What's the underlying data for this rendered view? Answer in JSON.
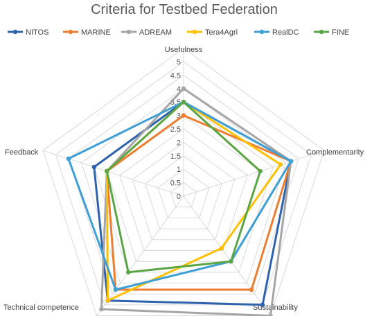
{
  "chart_data": {
    "type": "radar",
    "title": "Criteria for Testbed Federation",
    "categories": [
      "Usefulness",
      "Complementarity",
      "Sustainability",
      "Technical competence",
      "Feedback"
    ],
    "rlim": [
      0,
      5
    ],
    "ticks": [
      "0",
      "0.5",
      "1",
      "1.5",
      "2",
      "2.5",
      "3",
      "3.5",
      "4",
      "4.5",
      "5"
    ],
    "grid": true,
    "legend": "top",
    "series": [
      {
        "name": "NITOS",
        "color": "#2e62ad",
        "values": [
          3.5,
          4.2,
          5.0,
          4.8,
          3.5
        ]
      },
      {
        "name": "MARINE",
        "color": "#ed7d31",
        "values": [
          3.0,
          4.2,
          4.3,
          4.3,
          3.0
        ]
      },
      {
        "name": "ADREAM",
        "color": "#a5a5a5",
        "values": [
          4.0,
          4.2,
          5.5,
          5.2,
          3.0
        ]
      },
      {
        "name": "Tera4Agri",
        "color": "#ffc000",
        "values": [
          3.5,
          3.8,
          2.4,
          4.8,
          3.0
        ]
      },
      {
        "name": "RealDC",
        "color": "#3d9fd3",
        "values": [
          3.5,
          4.2,
          3.0,
          4.3,
          4.5
        ]
      },
      {
        "name": "FINE",
        "color": "#5aa544",
        "values": [
          3.5,
          3.0,
          3.0,
          3.5,
          3.0
        ]
      }
    ]
  }
}
